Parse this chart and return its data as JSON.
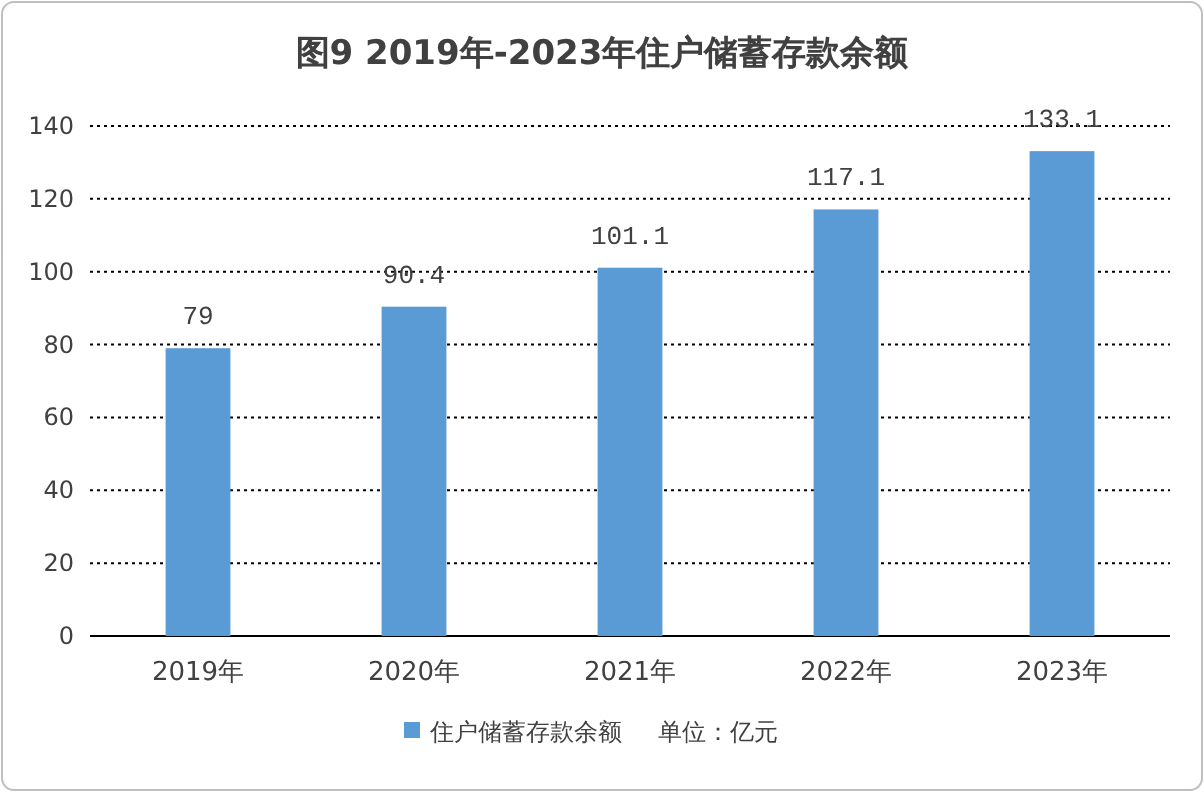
{
  "chart_data": {
    "type": "bar",
    "title": "图9   2019年-2023年住户储蓄存款余额",
    "categories": [
      "2019年",
      "2020年",
      "2021年",
      "2022年",
      "2023年"
    ],
    "series": [
      {
        "name": "住户储蓄存款余额",
        "color": "#5b9bd5",
        "values": [
          79,
          90.4,
          101.1,
          117.1,
          133.1
        ]
      }
    ],
    "ylim": [
      0,
      140
    ],
    "yticks": [
      0,
      20,
      40,
      60,
      80,
      100,
      120,
      140
    ],
    "grid": "y",
    "legend": "bottom",
    "data_labels": true,
    "annotations": [
      "单位：亿元"
    ]
  }
}
